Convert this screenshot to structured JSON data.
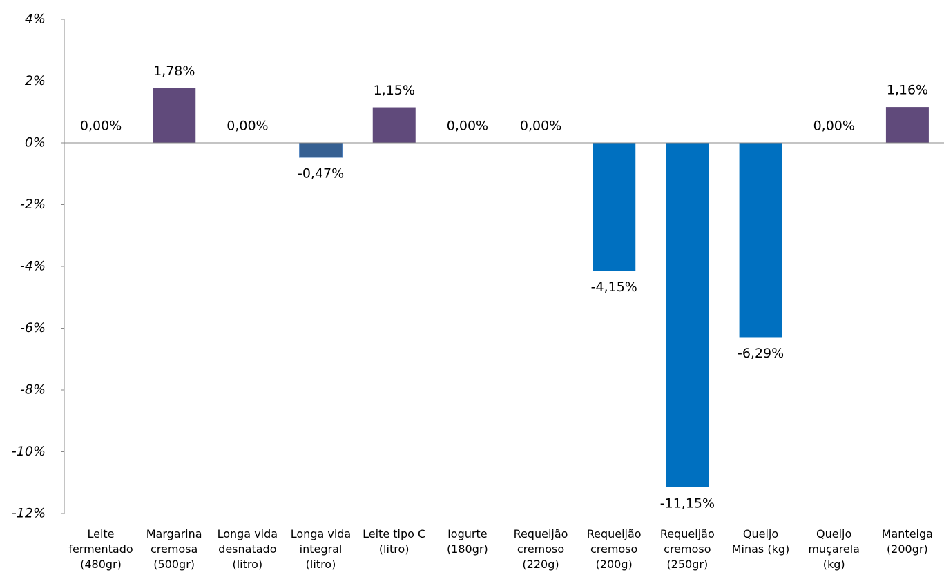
{
  "chart_data": {
    "type": "bar",
    "categories": [
      "Leite\nfermentado\n(480gr)",
      "Margarina\ncremosa\n(500gr)",
      "Longa vida\ndesnatado\n(litro)",
      "Longa vida\nintegral\n(litro)",
      "Leite tipo C\n(litro)",
      "Iogurte\n(180gr)",
      "Requeijão\ncremoso\n(220g)",
      "Requeijão\ncremoso\n(200g)",
      "Requeijão\ncremoso\n(250gr)",
      "Queijo\nMinas  (kg)",
      "Queijo\nmuçarela\n(kg)",
      "Manteiga\n(200gr)"
    ],
    "values": [
      0,
      1.78,
      0,
      -0.47,
      1.15,
      0,
      0,
      -4.15,
      -11.15,
      -6.29,
      0,
      1.16
    ],
    "value_labels": [
      "0,00%",
      "1,78%",
      "0,00%",
      "-0,47%",
      "1,15%",
      "0,00%",
      "0,00%",
      "-4,15%",
      "-11,15%",
      "-6,29%",
      "0,00%",
      "1,16%"
    ],
    "colors": [
      "#604a7b",
      "#604a7b",
      "#604a7b",
      "#366092",
      "#604a7b",
      "#604a7b",
      "#604a7b",
      "#0070c0",
      "#0070c0",
      "#0070c0",
      "#604a7b",
      "#604a7b"
    ],
    "ylim": [
      -12,
      4
    ],
    "yticks": [
      {
        "value": -12,
        "label": "-12%"
      },
      {
        "value": -10,
        "label": "-10%"
      },
      {
        "value": -8,
        "label": "-8%"
      },
      {
        "value": -6,
        "label": "-6%"
      },
      {
        "value": -4,
        "label": "-4%"
      },
      {
        "value": -2,
        "label": "-2%"
      },
      {
        "value": 0,
        "label": "0%"
      },
      {
        "value": 2,
        "label": "2%"
      },
      {
        "value": 4,
        "label": "4%"
      }
    ]
  }
}
